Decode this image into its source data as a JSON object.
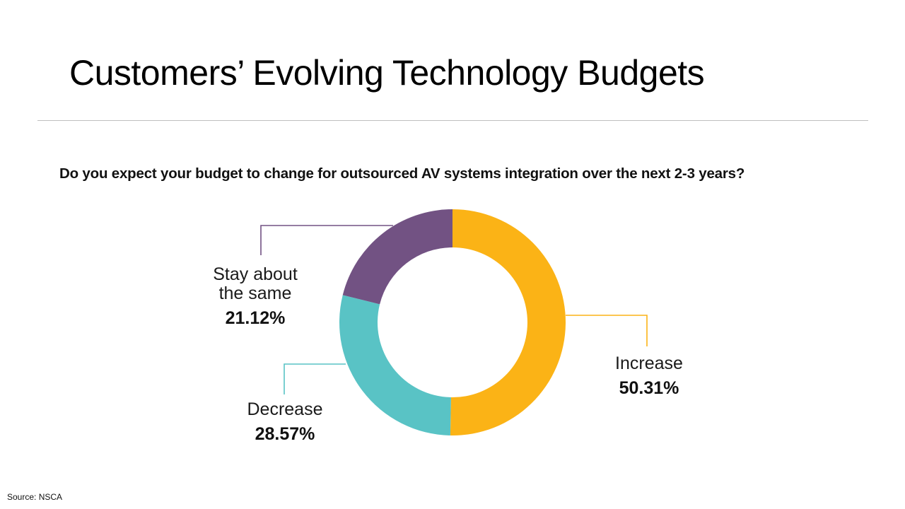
{
  "slide": {
    "title": "Customers’ Evolving Technology Budgets",
    "source": "Source: NSCA"
  },
  "chart_data": {
    "type": "pie",
    "variant": "donut",
    "title": "Do you expect your budget to change for outsourced AV systems integration over the next 2-3 years?",
    "slices": [
      {
        "label": "Increase",
        "value": 50.31,
        "display": "50.31%",
        "color": "#FBB316"
      },
      {
        "label": "Decrease",
        "value": 28.57,
        "display": "28.57%",
        "color": "#59C3C5"
      },
      {
        "label": "Stay about the same",
        "label_lines": [
          "Stay about",
          "the same"
        ],
        "value": 21.12,
        "display": "21.12%",
        "color": "#725283"
      }
    ],
    "start": "12 o'clock",
    "direction": "clockwise"
  }
}
